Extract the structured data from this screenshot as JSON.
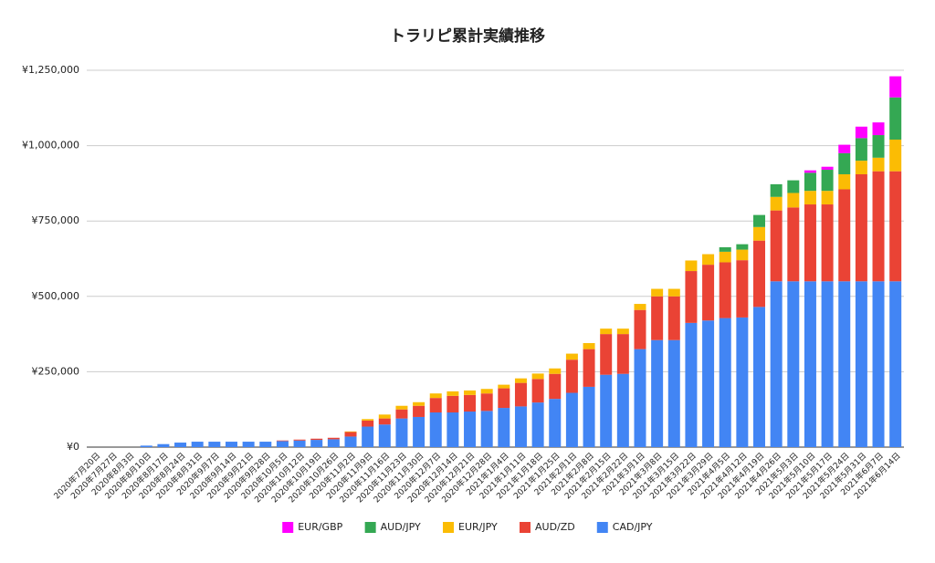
{
  "chart_data": {
    "type": "stacked-bar",
    "title": "トラリピ累計実績推移",
    "categories": [
      "2020年7月20日",
      "2020年7月27日",
      "2020年8月3日",
      "2020年8月10日",
      "2020年8月17日",
      "2020年8月24日",
      "2020年8月31日",
      "2020年9月7日",
      "2020年9月14日",
      "2020年9月21日",
      "2020年9月28日",
      "2020年10月5日",
      "2020年10月12日",
      "2020年10月19日",
      "2020年10月26日",
      "2020年11月2日",
      "2020年11月9日",
      "2020年11月16日",
      "2020年11月23日",
      "2020年11月30日",
      "2020年12月7日",
      "2020年12月14日",
      "2020年12月21日",
      "2020年12月28日",
      "2021年1月4日",
      "2021年1月11日",
      "2021年1月18日",
      "2021年1月25日",
      "2021年2月1日",
      "2021年2月8日",
      "2021年2月15日",
      "2021年2月22日",
      "2021年3月1日",
      "2021年3月8日",
      "2021年3月15日",
      "2021年3月22日",
      "2021年3月29日",
      "2021年4月5日",
      "2021年4月12日",
      "2021年4月19日",
      "2021年4月26日",
      "2021年5月3日",
      "2021年5月10日",
      "2021年5月17日",
      "2021年5月24日",
      "2021年5月31日",
      "2021年6月7日",
      "2021年6月14日"
    ],
    "series": [
      {
        "name": "EUR/GBP",
        "color": "#ff00ff",
        "values": [
          0,
          0,
          0,
          0,
          0,
          0,
          0,
          0,
          0,
          0,
          0,
          0,
          0,
          0,
          0,
          0,
          0,
          0,
          0,
          0,
          0,
          0,
          0,
          0,
          0,
          0,
          0,
          0,
          0,
          0,
          0,
          0,
          0,
          0,
          0,
          0,
          0,
          0,
          0,
          0,
          0,
          0,
          8000,
          10000,
          28000,
          38000,
          42000,
          70000
        ]
      },
      {
        "name": "AUD/JPY",
        "color": "#34a853",
        "values": [
          0,
          0,
          0,
          0,
          0,
          0,
          0,
          0,
          0,
          0,
          0,
          0,
          0,
          0,
          0,
          0,
          0,
          0,
          0,
          0,
          0,
          0,
          0,
          0,
          0,
          0,
          0,
          0,
          0,
          0,
          0,
          0,
          0,
          0,
          0,
          0,
          0,
          15000,
          18000,
          40000,
          42000,
          42000,
          60000,
          70000,
          70000,
          75000,
          75000,
          140000
        ]
      },
      {
        "name": "EUR/JPY",
        "color": "#fbbc04",
        "values": [
          0,
          0,
          0,
          0,
          0,
          0,
          0,
          0,
          0,
          0,
          0,
          0,
          0,
          0,
          0,
          2000,
          5000,
          13000,
          12000,
          12000,
          15000,
          15000,
          15000,
          15000,
          12000,
          15000,
          18000,
          18000,
          20000,
          20000,
          18000,
          18000,
          20000,
          25000,
          25000,
          35000,
          35000,
          35000,
          35000,
          45000,
          45000,
          48000,
          45000,
          45000,
          50000,
          45000,
          45000,
          105000
        ]
      },
      {
        "name": "AUD/ZD",
        "color": "#ea4335",
        "values": [
          0,
          0,
          0,
          0,
          0,
          0,
          0,
          0,
          0,
          0,
          0,
          2000,
          3000,
          4000,
          5000,
          15000,
          20000,
          20000,
          30000,
          37000,
          48000,
          55000,
          55000,
          58000,
          65000,
          78000,
          78000,
          83000,
          110000,
          125000,
          135000,
          132000,
          130000,
          145000,
          145000,
          172000,
          185000,
          185000,
          190000,
          220000,
          235000,
          245000,
          255000,
          255000,
          305000,
          355000,
          365000,
          365000
        ]
      },
      {
        "name": "CAD/JPY",
        "color": "#4285f4",
        "values": [
          0,
          0,
          0,
          5000,
          10000,
          15000,
          18000,
          18000,
          18000,
          18000,
          18000,
          20000,
          22000,
          24000,
          26000,
          35000,
          68000,
          75000,
          95000,
          100000,
          115000,
          115000,
          118000,
          120000,
          130000,
          135000,
          148000,
          160000,
          180000,
          200000,
          240000,
          243000,
          325000,
          355000,
          355000,
          412000,
          420000,
          428000,
          430000,
          465000,
          550000,
          550000,
          550000,
          550000,
          550000,
          550000,
          550000,
          550000
        ]
      }
    ],
    "ylim": [
      0,
      1250000
    ],
    "yticks": [
      {
        "value": 0,
        "label": "¥0"
      },
      {
        "value": 250000,
        "label": "¥250,000"
      },
      {
        "value": 500000,
        "label": "¥500,000"
      },
      {
        "value": 750000,
        "label": "¥750,000"
      },
      {
        "value": 1000000,
        "label": "¥1,000,000"
      },
      {
        "value": 1250000,
        "label": "¥1,250,000"
      }
    ],
    "grid": true
  }
}
